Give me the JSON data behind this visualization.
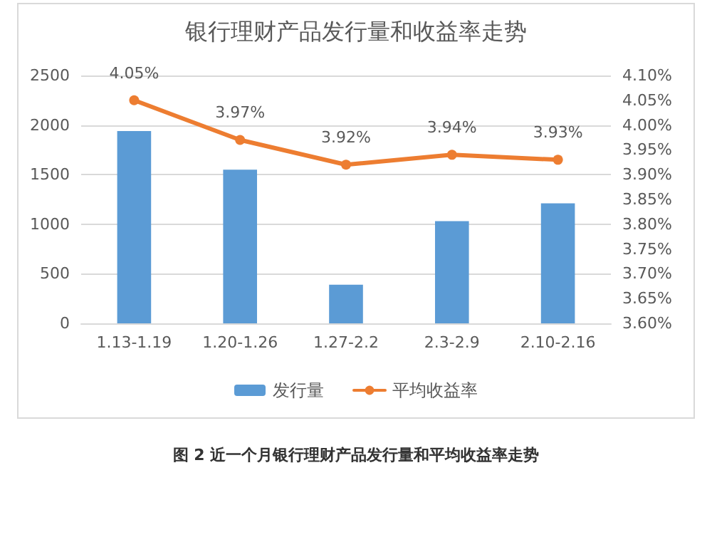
{
  "chart_data": {
    "type": "bar",
    "title": "银行理财产品发行量和收益率走势",
    "categories": [
      "1.13-1.19",
      "1.20-1.26",
      "1.27-2.2",
      "2.3-2.9",
      "2.10-2.16"
    ],
    "series": [
      {
        "name": "发行量",
        "color": "#5b9bd5",
        "values": [
          1940,
          1550,
          390,
          1030,
          1210
        ]
      },
      {
        "name": "平均收益率",
        "type": "line",
        "axis": "y2",
        "color": "#ed7d31",
        "marker": "circle",
        "values": [
          4.05,
          3.97,
          3.92,
          3.94,
          3.93
        ],
        "value_labels": [
          "4.05%",
          "3.97%",
          "3.92%",
          "3.94%",
          "3.93%"
        ]
      }
    ],
    "ylim": [
      0,
      2500
    ],
    "yticks": [
      0,
      500,
      1000,
      1500,
      2000,
      2500
    ],
    "y2lim": [
      3.6,
      4.1
    ],
    "y2ticks": [
      {
        "value": 3.6,
        "label": "3.60%"
      },
      {
        "value": 3.65,
        "label": "3.65%"
      },
      {
        "value": 3.7,
        "label": "3.70%"
      },
      {
        "value": 3.75,
        "label": "3.75%"
      },
      {
        "value": 3.8,
        "label": "3.80%"
      },
      {
        "value": 3.85,
        "label": "3.85%"
      },
      {
        "value": 3.9,
        "label": "3.90%"
      },
      {
        "value": 3.95,
        "label": "3.95%"
      },
      {
        "value": 4.0,
        "label": "4.00%"
      },
      {
        "value": 4.05,
        "label": "4.05%"
      },
      {
        "value": 4.1,
        "label": "4.10%"
      }
    ],
    "grid": "y",
    "legend": "bottom",
    "annotations": [
      "图 2  近一个月银行理财产品发行量和平均收益率走势"
    ]
  }
}
